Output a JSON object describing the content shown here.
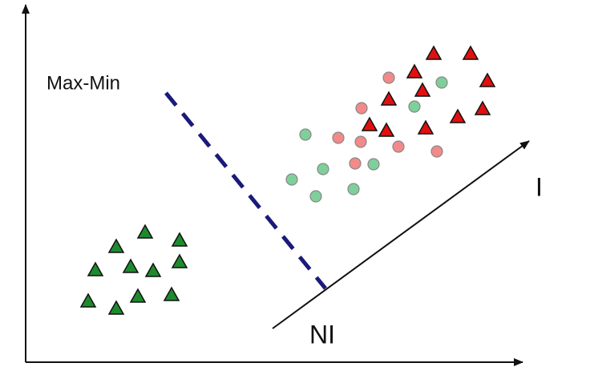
{
  "labels": {
    "max_min": "Max-Min",
    "informative": "I",
    "non_informative": "NI"
  }
}
